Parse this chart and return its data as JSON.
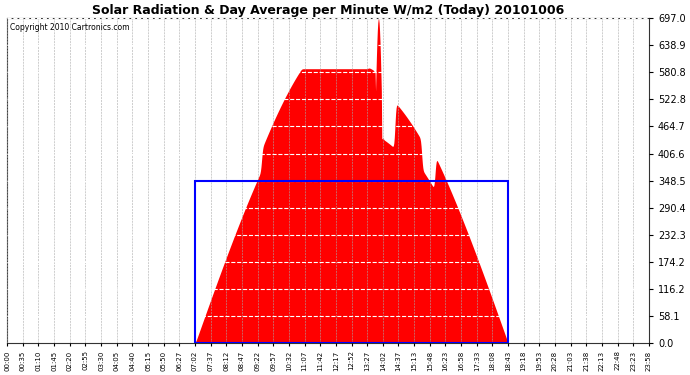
{
  "title": "Solar Radiation & Day Average per Minute W/m2 (Today) 20101006",
  "copyright": "Copyright 2010 Cartronics.com",
  "background_color": "#ffffff",
  "plot_bg_color": "#ffffff",
  "y_max": 697.0,
  "y_min": 0.0,
  "y_ticks": [
    0.0,
    58.1,
    116.2,
    174.2,
    232.3,
    290.4,
    348.5,
    406.6,
    464.7,
    522.8,
    580.8,
    638.9,
    697.0
  ],
  "day_average": 348.5,
  "solar_color": "#ff0000",
  "avg_box_color": "#0000ff",
  "x_tick_labels": [
    "00:00",
    "00:35",
    "01:10",
    "01:45",
    "02:20",
    "02:55",
    "03:30",
    "04:05",
    "04:40",
    "05:15",
    "05:50",
    "06:27",
    "07:02",
    "07:37",
    "08:12",
    "08:47",
    "09:22",
    "09:57",
    "10:32",
    "11:07",
    "11:42",
    "12:17",
    "12:52",
    "13:27",
    "14:02",
    "14:37",
    "15:13",
    "15:48",
    "16:23",
    "16:58",
    "17:33",
    "18:08",
    "18:43",
    "19:18",
    "19:53",
    "20:28",
    "21:03",
    "21:38",
    "22:13",
    "22:48",
    "23:23",
    "23:58"
  ],
  "sunrise_label": "07:02",
  "sunset_label": "18:43",
  "n_points": 1440,
  "solar_data": []
}
